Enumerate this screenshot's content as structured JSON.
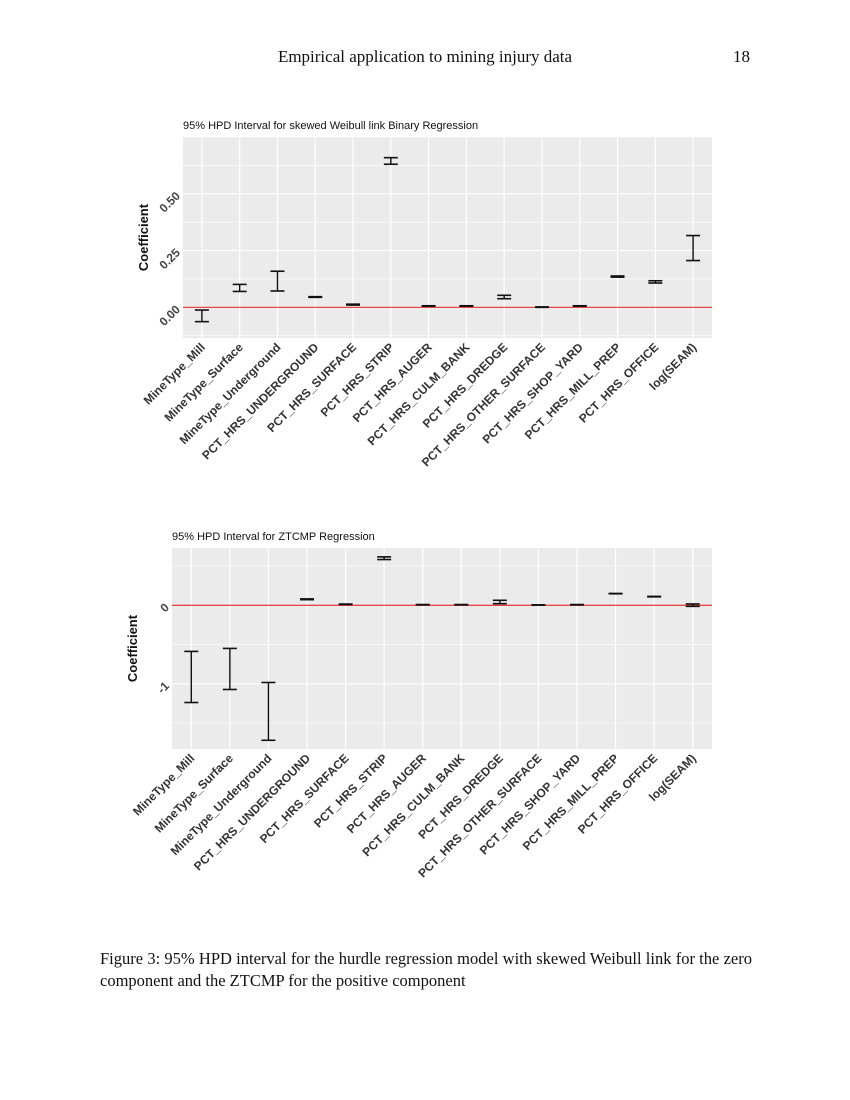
{
  "page": {
    "running_title": "Empirical application to mining injury data",
    "page_number": "18",
    "caption": "Figure 3: 95% HPD interval for the hurdle regression model with skewed Weibull link for the zero component and the ZTCMP for the positive component"
  },
  "chart_data": [
    {
      "type": "errorbar",
      "title": "95% HPD Interval for skewed Weibull link Binary Regression",
      "xlabel": "",
      "ylabel": "Coefficient",
      "ylim": [
        -0.135,
        0.75
      ],
      "yticks": [
        0,
        0.25,
        0.5
      ],
      "ytick_labels": [
        "0.00",
        "0.25",
        "0.50"
      ],
      "reference_line": {
        "y": 0,
        "color": "#e8474a"
      },
      "grid": true,
      "background": "#ebebeb",
      "categories": [
        "MineType_Mill",
        "MineType_Surface",
        "MineType_Underground",
        "PCT_HRS_UNDERGROUND",
        "PCT_HRS_SURFACE",
        "PCT_HRS_STRIP",
        "PCT_HRS_AUGER",
        "PCT_HRS_CULM_BANK",
        "PCT_HRS_DREDGE",
        "PCT_HRS_OTHER_SURFACE",
        "PCT_HRS_SHOP_YARD",
        "PCT_HRS_MILL_PREP",
        "PCT_HRS_OFFICE",
        "log(SEAM)"
      ],
      "lower": [
        -0.063,
        0.07,
        0.072,
        0.044,
        0.01,
        0.63,
        0.005,
        0.005,
        0.038,
        0.0,
        0.005,
        0.133,
        0.107,
        0.206
      ],
      "upper": [
        -0.012,
        0.101,
        0.159,
        0.047,
        0.014,
        0.659,
        0.007,
        0.007,
        0.053,
        0.002,
        0.007,
        0.138,
        0.117,
        0.316
      ]
    },
    {
      "type": "errorbar",
      "title": "95% HPD Interval for ZTCMP Regression",
      "xlabel": "",
      "ylabel": "Coefficient",
      "ylim": [
        -1.83,
        0.73
      ],
      "yticks": [
        0,
        -1
      ],
      "ytick_labels": [
        "0",
        "-1"
      ],
      "reference_line": {
        "y": 0,
        "color": "#e8474a"
      },
      "grid": true,
      "background": "#ebebeb",
      "categories": [
        "MineType_Mill",
        "MineType_Surface",
        "MineType_Underground",
        "PCT_HRS_UNDERGROUND",
        "PCT_HRS_SURFACE",
        "PCT_HRS_STRIP",
        "PCT_HRS_AUGER",
        "PCT_HRS_CULM_BANK",
        "PCT_HRS_DREDGE",
        "PCT_HRS_OTHER_SURFACE",
        "PCT_HRS_SHOP_YARD",
        "PCT_HRS_MILL_PREP",
        "PCT_HRS_OFFICE",
        "log(SEAM)"
      ],
      "lower": [
        -1.238,
        -1.072,
        -1.719,
        0.072,
        0.01,
        0.583,
        0.006,
        0.006,
        0.021,
        0.002,
        0.006,
        0.147,
        0.108,
        -0.013
      ],
      "upper": [
        -0.587,
        -0.549,
        -0.983,
        0.082,
        0.016,
        0.617,
        0.01,
        0.01,
        0.064,
        0.006,
        0.01,
        0.151,
        0.114,
        0.017
      ]
    }
  ]
}
